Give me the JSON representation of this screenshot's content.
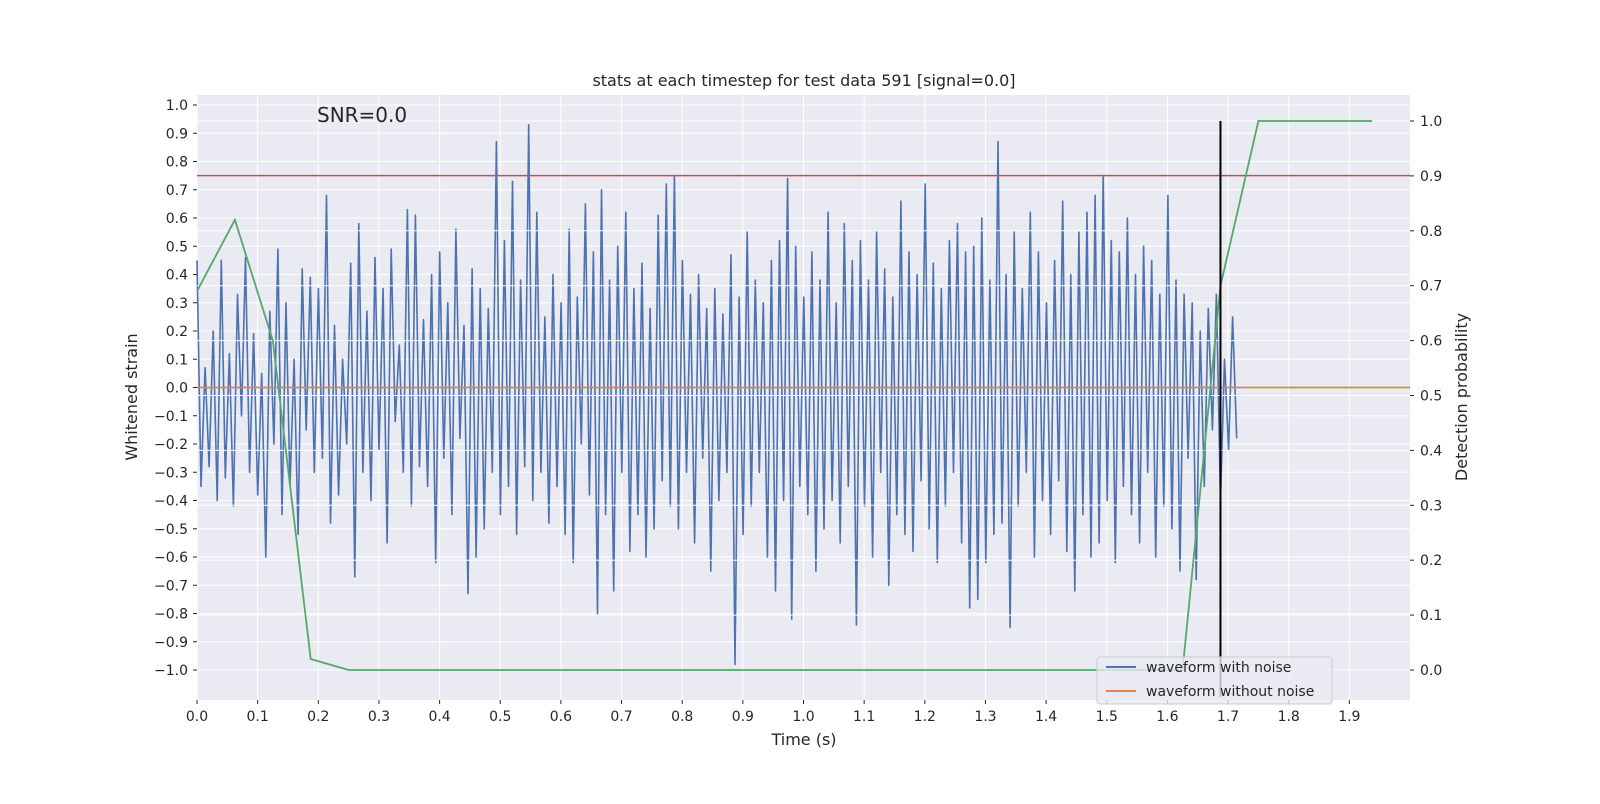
{
  "chart_data": {
    "type": "line",
    "title": "stats at each timestep for test data 591 [signal=0.0]",
    "xlabel": "Time (s)",
    "ylabel_left": "Whitened strain",
    "ylabel_right": "Detection probability",
    "annotation": "SNR=0.0",
    "xlim": [
      0,
      2.0
    ],
    "ylim_left": [
      -1.1,
      1.035
    ],
    "ylim_right": [
      -0.049,
      1.047
    ],
    "grid": true,
    "legend_placement": "lower-right",
    "x_ticks": [
      "0.0",
      "0.1",
      "0.2",
      "0.3",
      "0.4",
      "0.5",
      "0.6",
      "0.7",
      "0.8",
      "0.9",
      "1.0",
      "1.1",
      "1.2",
      "1.3",
      "1.4",
      "1.5",
      "1.6",
      "1.7",
      "1.8",
      "1.9"
    ],
    "y_left_ticks": [
      "1.0",
      "0.9",
      "0.8",
      "0.7",
      "0.6",
      "0.5",
      "0.4",
      "0.3",
      "0.2",
      "0.1",
      "0.0",
      "−0.1",
      "−0.2",
      "−0.3",
      "−0.4",
      "−0.5",
      "−0.6",
      "−0.7",
      "−0.8",
      "−0.9",
      "−1.0"
    ],
    "y_right_ticks": [
      "1.0",
      "0.9",
      "0.8",
      "0.7",
      "0.6",
      "0.5",
      "0.4",
      "0.3",
      "0.2",
      "0.1",
      "0.0"
    ],
    "colors": {
      "noise": "#4c72b0",
      "clean": "#dd8452",
      "prob": "#55a868",
      "threshold": "#c44e52",
      "marker": "#000000",
      "background": "#eaeaf2"
    },
    "series": [
      {
        "name": "waveform with noise",
        "axis": "left",
        "t_start": 0,
        "t_step": 0.00667,
        "values": [
          0.45,
          -0.35,
          0.07,
          -0.28,
          0.2,
          -0.4,
          0.45,
          -0.32,
          0.12,
          -0.42,
          0.33,
          -0.1,
          0.46,
          -0.3,
          0.19,
          -0.38,
          0.05,
          -0.6,
          0.27,
          -0.2,
          0.49,
          -0.45,
          0.3,
          -0.35,
          0.1,
          -0.52,
          0.42,
          -0.15,
          0.39,
          -0.3,
          0.35,
          -0.25,
          0.68,
          -0.48,
          0.22,
          -0.38,
          0.1,
          -0.2,
          0.44,
          -0.67,
          0.58,
          -0.3,
          0.27,
          -0.4,
          0.46,
          -0.22,
          0.35,
          -0.55,
          0.49,
          -0.12,
          0.15,
          -0.3,
          0.63,
          -0.42,
          0.61,
          -0.28,
          0.24,
          -0.35,
          0.4,
          -0.62,
          0.48,
          -0.25,
          0.3,
          -0.45,
          0.56,
          -0.18,
          0.22,
          -0.73,
          0.42,
          -0.6,
          0.35,
          -0.5,
          0.28,
          -0.3,
          0.87,
          -0.45,
          0.52,
          -0.35,
          0.73,
          -0.52,
          0.38,
          -0.28,
          0.93,
          -0.4,
          0.62,
          -0.3,
          0.25,
          -0.48,
          0.4,
          -0.35,
          0.3,
          -0.52,
          0.56,
          -0.62,
          0.32,
          -0.2,
          0.65,
          -0.38,
          0.48,
          -0.8,
          0.7,
          -0.45,
          0.38,
          -0.72,
          0.5,
          -0.3,
          0.62,
          -0.58,
          0.35,
          -0.45,
          0.44,
          -0.6,
          0.28,
          -0.5,
          0.61,
          -0.33,
          0.72,
          -0.42,
          0.75,
          -0.5,
          0.45,
          -0.3,
          0.33,
          -0.55,
          0.4,
          -0.25,
          0.28,
          -0.65,
          0.35,
          -0.4,
          0.26,
          -0.3,
          0.47,
          -0.98,
          0.32,
          -0.52,
          0.55,
          -0.42,
          0.38,
          -0.3,
          0.3,
          -0.6,
          0.45,
          -0.72,
          0.52,
          -0.4,
          0.74,
          -0.82,
          0.5,
          -0.35,
          0.32,
          -0.45,
          0.48,
          -0.65,
          0.38,
          -0.5,
          0.62,
          -0.4,
          0.3,
          -0.55,
          0.58,
          -0.35,
          0.45,
          -0.84,
          0.52,
          -0.42,
          0.38,
          -0.6,
          0.55,
          -0.3,
          0.42,
          -0.7,
          0.32,
          -0.45,
          0.66,
          -0.52,
          0.48,
          -0.58,
          0.4,
          -0.33,
          0.72,
          -0.5,
          0.44,
          -0.62,
          0.35,
          -0.42,
          0.52,
          -0.3,
          0.58,
          -0.55,
          0.48,
          -0.78,
          0.5,
          -0.75,
          0.6,
          -0.62,
          0.38,
          -0.52,
          0.87,
          -0.48,
          0.4,
          -0.85,
          0.55,
          -0.42,
          0.35,
          -0.3,
          0.62,
          -0.6,
          0.48,
          -0.4,
          0.3,
          -0.52,
          0.45,
          -0.33,
          0.66,
          -0.58,
          0.4,
          -0.72,
          0.55,
          -0.45,
          0.62,
          -0.6,
          0.68,
          -0.55,
          0.75,
          -0.4,
          0.52,
          -0.62,
          0.48,
          -0.35,
          0.6,
          -0.45,
          0.4,
          -0.55,
          0.5,
          -0.3,
          0.45,
          -0.6,
          0.33,
          -0.42,
          0.68,
          -0.5,
          0.38,
          -0.65,
          0.33,
          -0.25,
          0.3,
          -0.68,
          0.2,
          -0.35,
          0.28,
          -0.15,
          0.33,
          -0.4,
          0.1,
          -0.22,
          0.25,
          -0.18
        ]
      },
      {
        "name": "waveform without noise",
        "axis": "left",
        "x": [
          0,
          2.0
        ],
        "y": [
          0,
          0
        ]
      },
      {
        "name": "detection probability",
        "axis": "right",
        "x": [
          0,
          0.0625,
          0.125,
          0.1875,
          0.25,
          1.625,
          1.6875,
          1.75,
          1.9375
        ],
        "y": [
          0.69,
          0.82,
          0.6,
          0.02,
          0.0,
          0.0,
          0.7,
          1.0,
          1.0
        ]
      },
      {
        "name": "threshold",
        "axis": "left",
        "y_const": 0.75
      },
      {
        "name": "detection time marker",
        "axis": "right",
        "x_const": 1.6875,
        "y_range": [
          0,
          1.0
        ]
      }
    ],
    "legend": [
      "waveform with noise",
      "waveform without noise"
    ]
  }
}
